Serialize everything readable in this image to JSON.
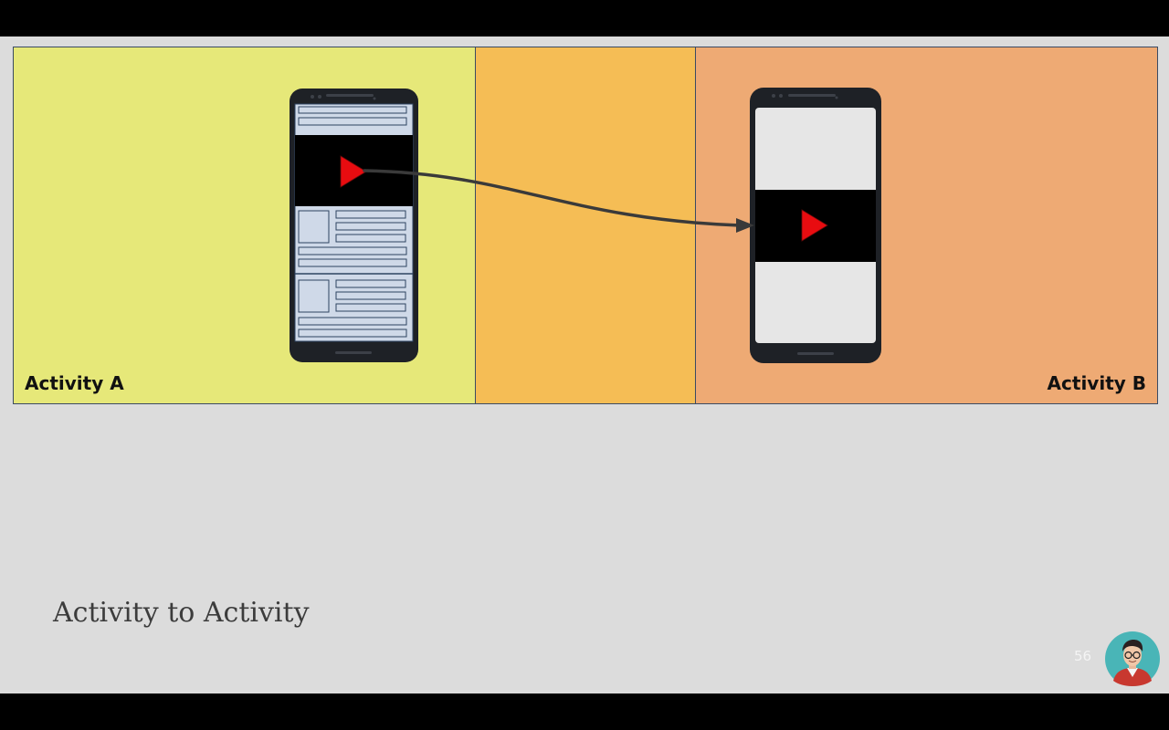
{
  "panels": {
    "activity_a": {
      "label": "Activity A",
      "color": "#e6e879"
    },
    "transition": {
      "color": "#f5bd55"
    },
    "activity_b": {
      "label": "Activity B",
      "color": "#eeaa74"
    }
  },
  "slide": {
    "title": "Activity to Activity",
    "page_number": "56",
    "background": "#dcdcdc"
  },
  "icons": {
    "play": "play-icon",
    "arrow": "transition-arrow",
    "avatar": "presenter-avatar-icon"
  },
  "colors": {
    "phone_body": "#1e2126",
    "list_item_fill": "#cfd9e8",
    "list_item_stroke": "#2d4461",
    "video_background": "#000000",
    "play_red": "#e80c10",
    "arrow": "#3a3a3a"
  }
}
